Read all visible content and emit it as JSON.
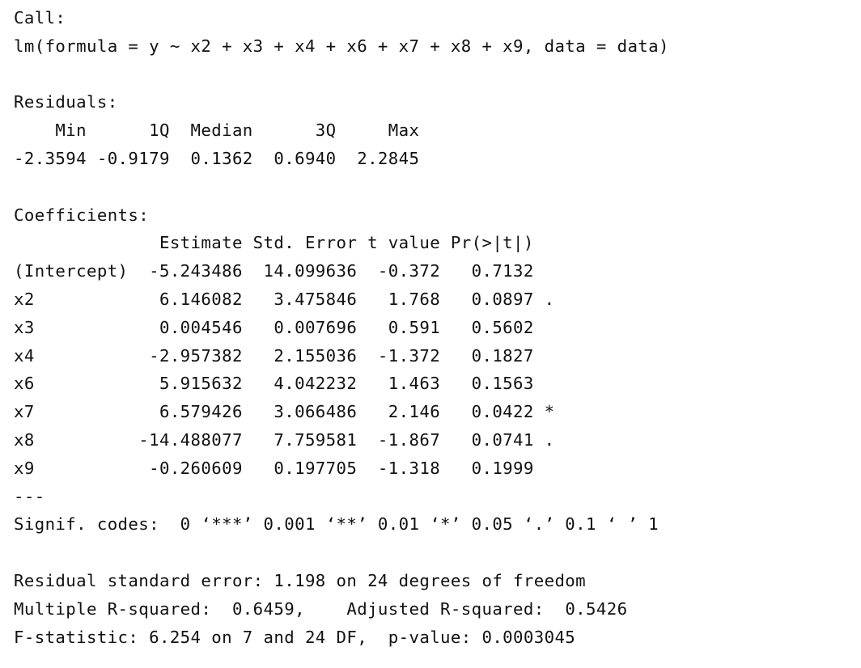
{
  "call": {
    "header": "Call:",
    "formula": "lm(formula = y ~ x2 + x3 + x4 + x6 + x7 + x8 + x9, data = data)"
  },
  "residuals": {
    "header": "Residuals:",
    "labels_row": "    Min      1Q  Median      3Q     Max ",
    "values_row": "-2.3594 -0.9179  0.1362  0.6940  2.2845 "
  },
  "coefficients": {
    "header": "Coefficients:",
    "columns_row": "              Estimate Std. Error t value Pr(>|t|)  ",
    "rows": [
      "(Intercept)  -5.243486  14.099636  -0.372   0.7132  ",
      "x2            6.146082   3.475846   1.768   0.0897 .",
      "x3            0.004546   0.007696   0.591   0.5602  ",
      "x4           -2.957382   2.155036  -1.372   0.1827  ",
      "x6            5.915632   4.042232   1.463   0.1563  ",
      "x7            6.579426   3.066486   2.146   0.0422 *",
      "x8          -14.488077   7.759581  -1.867   0.0741 .",
      "x9           -0.260609   0.197705  -1.318   0.1999  "
    ],
    "separator": "---",
    "signif_codes": "Signif. codes:  0 ‘***’ 0.001 ‘**’ 0.01 ‘*’ 0.05 ‘.’ 0.1 ‘ ’ 1"
  },
  "summary": {
    "residual_se": "Residual standard error: 1.198 on 24 degrees of freedom",
    "r_squared": "Multiple R-squared:  0.6459,\tAdjusted R-squared:  0.5426 ",
    "f_statistic": "F-statistic: 6.254 on 7 and 24 DF,  p-value: 0.0003045"
  }
}
